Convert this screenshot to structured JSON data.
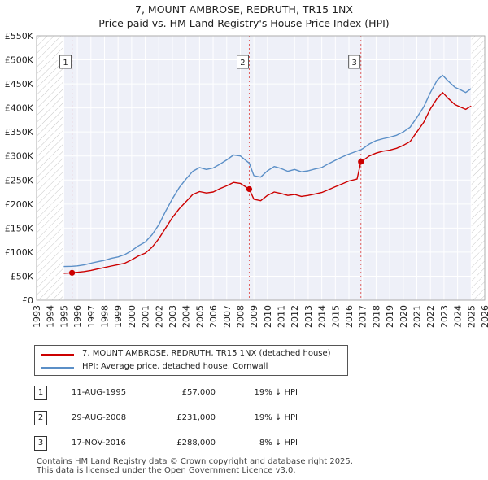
{
  "chart_data": {
    "type": "line",
    "title": "7, MOUNT AMBROSE, REDRUTH, TR15 1NX",
    "subtitle": "Price paid vs. HM Land Registry's House Price Index (HPI)",
    "xlim": [
      1993,
      2026
    ],
    "ylim": [
      0,
      550000
    ],
    "x_ticks": [
      1993,
      1994,
      1995,
      1996,
      1997,
      1998,
      1999,
      2000,
      2001,
      2002,
      2003,
      2004,
      2005,
      2006,
      2007,
      2008,
      2009,
      2010,
      2011,
      2012,
      2013,
      2014,
      2015,
      2016,
      2017,
      2018,
      2019,
      2020,
      2021,
      2022,
      2023,
      2024,
      2025,
      2026
    ],
    "y_ticks": [
      {
        "value": 0,
        "label": "£0"
      },
      {
        "value": 50000,
        "label": "£50K"
      },
      {
        "value": 100000,
        "label": "£100K"
      },
      {
        "value": 150000,
        "label": "£150K"
      },
      {
        "value": 200000,
        "label": "£200K"
      },
      {
        "value": 250000,
        "label": "£250K"
      },
      {
        "value": 300000,
        "label": "£300K"
      },
      {
        "value": 350000,
        "label": "£350K"
      },
      {
        "value": 400000,
        "label": "£400K"
      },
      {
        "value": 450000,
        "label": "£450K"
      },
      {
        "value": 500000,
        "label": "£500K"
      },
      {
        "value": 550000,
        "label": "£550K"
      }
    ],
    "grid": true,
    "hatched_regions": [
      [
        1993,
        1995.0
      ],
      [
        2025.0,
        2026
      ]
    ],
    "series": [
      {
        "name": "7, MOUNT AMBROSE, REDRUTH, TR15 1NX (detached house)",
        "color": "#cc0000",
        "points": [
          [
            1995.0,
            56000
          ],
          [
            1995.61,
            57000
          ],
          [
            1996.0,
            58000
          ],
          [
            1996.5,
            59500
          ],
          [
            1997.0,
            62000
          ],
          [
            1997.5,
            65000
          ],
          [
            1998.0,
            68000
          ],
          [
            1998.5,
            71000
          ],
          [
            1999.0,
            74000
          ],
          [
            1999.5,
            77000
          ],
          [
            2000.0,
            84000
          ],
          [
            2000.5,
            92000
          ],
          [
            2001.0,
            98000
          ],
          [
            2001.5,
            110000
          ],
          [
            2002.0,
            128000
          ],
          [
            2002.5,
            150000
          ],
          [
            2003.0,
            172000
          ],
          [
            2003.5,
            190000
          ],
          [
            2004.0,
            205000
          ],
          [
            2004.5,
            220000
          ],
          [
            2005.0,
            226000
          ],
          [
            2005.5,
            223000
          ],
          [
            2006.0,
            225000
          ],
          [
            2006.5,
            232000
          ],
          [
            2007.0,
            238000
          ],
          [
            2007.5,
            245000
          ],
          [
            2008.0,
            243000
          ],
          [
            2008.66,
            231000
          ],
          [
            2009.0,
            210000
          ],
          [
            2009.5,
            207000
          ],
          [
            2010.0,
            218000
          ],
          [
            2010.5,
            225000
          ],
          [
            2011.0,
            222000
          ],
          [
            2011.5,
            218000
          ],
          [
            2012.0,
            220000
          ],
          [
            2012.5,
            216000
          ],
          [
            2013.0,
            218000
          ],
          [
            2013.5,
            221000
          ],
          [
            2014.0,
            224000
          ],
          [
            2014.5,
            230000
          ],
          [
            2015.0,
            236000
          ],
          [
            2015.5,
            242000
          ],
          [
            2016.0,
            248000
          ],
          [
            2016.6,
            252000
          ],
          [
            2016.88,
            288000
          ],
          [
            2017.0,
            290000
          ],
          [
            2017.5,
            300000
          ],
          [
            2018.0,
            306000
          ],
          [
            2018.5,
            310000
          ],
          [
            2019.0,
            312000
          ],
          [
            2019.5,
            316000
          ],
          [
            2020.0,
            322000
          ],
          [
            2020.5,
            330000
          ],
          [
            2021.0,
            350000
          ],
          [
            2021.5,
            370000
          ],
          [
            2022.0,
            398000
          ],
          [
            2022.5,
            420000
          ],
          [
            2022.9,
            432000
          ],
          [
            2023.3,
            420000
          ],
          [
            2023.8,
            407000
          ],
          [
            2024.2,
            402000
          ],
          [
            2024.6,
            397000
          ],
          [
            2025.0,
            404000
          ]
        ]
      },
      {
        "name": "HPI: Average price, detached house, Cornwall",
        "color": "#5b8fc7",
        "points": [
          [
            1995.0,
            70000
          ],
          [
            1995.61,
            70500
          ],
          [
            1996.0,
            71500
          ],
          [
            1996.5,
            73500
          ],
          [
            1997.0,
            77000
          ],
          [
            1997.5,
            80000
          ],
          [
            1998.0,
            83000
          ],
          [
            1998.5,
            87000
          ],
          [
            1999.0,
            90000
          ],
          [
            1999.5,
            95000
          ],
          [
            2000.0,
            103000
          ],
          [
            2000.5,
            113000
          ],
          [
            2001.0,
            121000
          ],
          [
            2001.5,
            136000
          ],
          [
            2002.0,
            157000
          ],
          [
            2002.5,
            185000
          ],
          [
            2003.0,
            211000
          ],
          [
            2003.5,
            234000
          ],
          [
            2004.0,
            252000
          ],
          [
            2004.5,
            268000
          ],
          [
            2005.0,
            276000
          ],
          [
            2005.5,
            272000
          ],
          [
            2006.0,
            275000
          ],
          [
            2006.5,
            283000
          ],
          [
            2007.0,
            292000
          ],
          [
            2007.5,
            302000
          ],
          [
            2008.0,
            300000
          ],
          [
            2008.66,
            285000
          ],
          [
            2009.0,
            259000
          ],
          [
            2009.5,
            256000
          ],
          [
            2010.0,
            269000
          ],
          [
            2010.5,
            278000
          ],
          [
            2011.0,
            274000
          ],
          [
            2011.5,
            268000
          ],
          [
            2012.0,
            272000
          ],
          [
            2012.5,
            267000
          ],
          [
            2013.0,
            269000
          ],
          [
            2013.5,
            273000
          ],
          [
            2014.0,
            276000
          ],
          [
            2014.5,
            284000
          ],
          [
            2015.0,
            291000
          ],
          [
            2015.5,
            298000
          ],
          [
            2016.0,
            304000
          ],
          [
            2016.88,
            313000
          ],
          [
            2017.0,
            315000
          ],
          [
            2017.5,
            325000
          ],
          [
            2018.0,
            332000
          ],
          [
            2018.5,
            336000
          ],
          [
            2019.0,
            339000
          ],
          [
            2019.5,
            343000
          ],
          [
            2020.0,
            350000
          ],
          [
            2020.5,
            360000
          ],
          [
            2021.0,
            380000
          ],
          [
            2021.5,
            402000
          ],
          [
            2022.0,
            432000
          ],
          [
            2022.5,
            458000
          ],
          [
            2022.9,
            468000
          ],
          [
            2023.3,
            456000
          ],
          [
            2023.8,
            443000
          ],
          [
            2024.2,
            438000
          ],
          [
            2024.6,
            432000
          ],
          [
            2025.0,
            440000
          ]
        ]
      }
    ],
    "markers": [
      {
        "label": "1",
        "x": 1995.61,
        "value": 57000
      },
      {
        "label": "2",
        "x": 2008.66,
        "value": 231000
      },
      {
        "label": "3",
        "x": 2016.88,
        "value": 288000
      }
    ]
  },
  "legend": {
    "entries": [
      {
        "label": "7, MOUNT AMBROSE, REDRUTH, TR15 1NX (detached house)",
        "color": "#cc0000"
      },
      {
        "label": "HPI: Average price, detached house, Cornwall",
        "color": "#5b8fc7"
      }
    ]
  },
  "transactions": [
    {
      "num": "1",
      "date": "11-AUG-1995",
      "price": "£57,000",
      "hpi": "19% ↓ HPI"
    },
    {
      "num": "2",
      "date": "29-AUG-2008",
      "price": "£231,000",
      "hpi": "19% ↓ HPI"
    },
    {
      "num": "3",
      "date": "17-NOV-2016",
      "price": "£288,000",
      "hpi": "8% ↓ HPI"
    }
  ],
  "footer": {
    "line1": "Contains HM Land Registry data © Crown copyright and database right 2025.",
    "line2": "This data is licensed under the Open Government Licence v3.0."
  }
}
